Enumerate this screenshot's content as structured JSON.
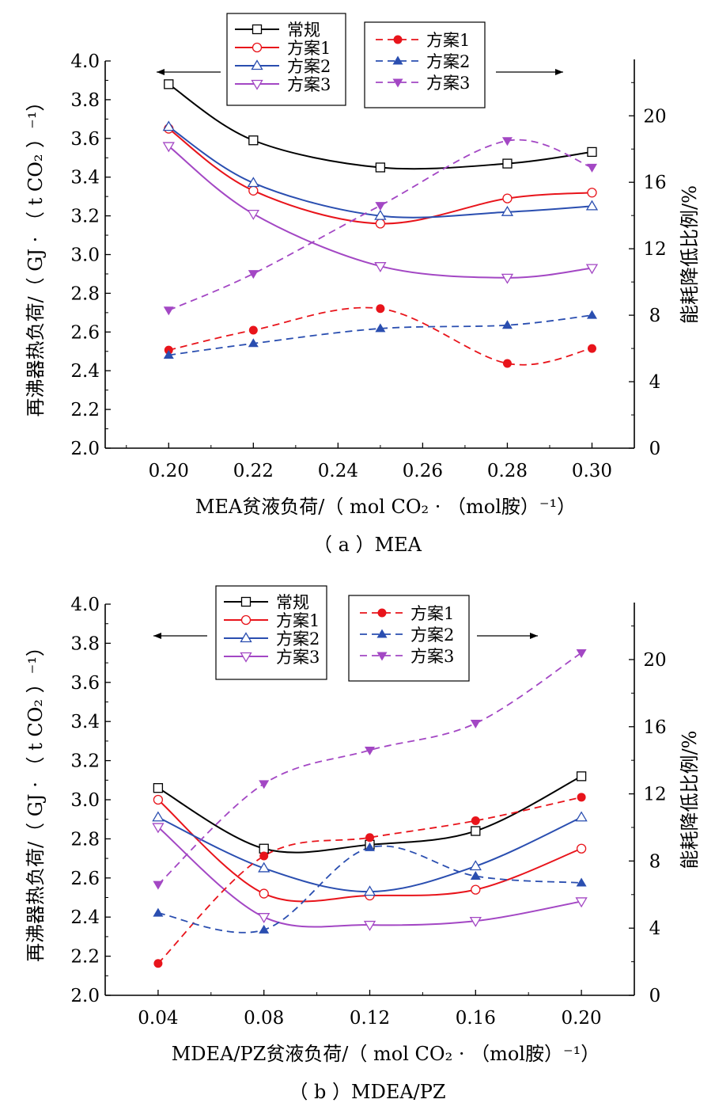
{
  "colors": {
    "conventional": "#000000",
    "scheme1": "#e8141b",
    "scheme2": "#2a4eb0",
    "scheme3": "#a347c4"
  },
  "chart_data": [
    {
      "type": "line",
      "caption": "（ a ）MEA",
      "xlabel": "MEA贫液负荷/（ mol CO₂ · （mol胺）⁻¹）",
      "ylabel": "再沸器热负荷/（ GJ · （ t CO₂ ）⁻¹）",
      "y2label": "能耗降低比例/%",
      "xlim": [
        0.185,
        0.31
      ],
      "ylim": [
        2.0,
        4.0
      ],
      "y2lim": [
        0,
        23.3
      ],
      "x_ticks": [
        "0.20",
        "0.22",
        "0.24",
        "0.26",
        "0.28",
        "0.30"
      ],
      "y_ticks": [
        "2.0",
        "2.2",
        "2.4",
        "2.6",
        "2.8",
        "3.0",
        "3.2",
        "3.4",
        "3.6",
        "3.8",
        "4.0"
      ],
      "y2_ticks": [
        "0",
        "4",
        "8",
        "12",
        "16",
        "20"
      ],
      "legend_left": [
        "常规",
        "方案1",
        "方案2",
        "方案3"
      ],
      "legend_right": [
        "方案1",
        "方案2",
        "方案3"
      ],
      "arrow_left": "←",
      "arrow_right": "→",
      "left_series": [
        {
          "name": "常规",
          "x": [
            0.2,
            0.22,
            0.25,
            0.28,
            0.3
          ],
          "y": [
            3.88,
            3.59,
            3.45,
            3.47,
            3.53
          ]
        },
        {
          "name": "方案1",
          "x": [
            0.2,
            0.22,
            0.25,
            0.28,
            0.3
          ],
          "y": [
            3.65,
            3.33,
            3.16,
            3.29,
            3.32
          ]
        },
        {
          "name": "方案2",
          "x": [
            0.2,
            0.22,
            0.25,
            0.28,
            0.3
          ],
          "y": [
            3.66,
            3.37,
            3.2,
            3.22,
            3.25
          ]
        },
        {
          "name": "方案3",
          "x": [
            0.2,
            0.22,
            0.25,
            0.28,
            0.3
          ],
          "y": [
            3.56,
            3.21,
            2.94,
            2.88,
            2.93
          ]
        }
      ],
      "right_series": [
        {
          "name": "方案1",
          "x": [
            0.2,
            0.22,
            0.25,
            0.28,
            0.3
          ],
          "y": [
            5.9,
            7.1,
            8.4,
            5.1,
            6.0
          ]
        },
        {
          "name": "方案2",
          "x": [
            0.2,
            0.22,
            0.25,
            0.28,
            0.3
          ],
          "y": [
            5.6,
            6.3,
            7.2,
            7.4,
            8.0
          ]
        },
        {
          "name": "方案3",
          "x": [
            0.2,
            0.22,
            0.25,
            0.28,
            0.3
          ],
          "y": [
            8.3,
            10.5,
            14.6,
            18.5,
            16.9
          ]
        }
      ]
    },
    {
      "type": "line",
      "caption": "（ b ）MDEA/PZ",
      "xlabel": "MDEA/PZ贫液负荷/（ mol CO₂ · （mol胺）⁻¹）",
      "ylabel": "再沸器热负荷/（ GJ · （ t CO₂ ）⁻¹）",
      "y2label": "能耗降低比例/%",
      "xlim": [
        0.02,
        0.22
      ],
      "ylim": [
        2.0,
        4.0
      ],
      "y2lim": [
        0,
        23.3
      ],
      "x_ticks": [
        "0.04",
        "0.08",
        "0.12",
        "0.16",
        "0.20"
      ],
      "y_ticks": [
        "2.0",
        "2.2",
        "2.4",
        "2.6",
        "2.8",
        "3.0",
        "3.2",
        "3.4",
        "3.6",
        "3.8",
        "4.0"
      ],
      "y2_ticks": [
        "0",
        "4",
        "8",
        "12",
        "16",
        "20"
      ],
      "legend_left": [
        "常规",
        "方案1",
        "方案2",
        "方案3"
      ],
      "legend_right": [
        "方案1",
        "方案2",
        "方案3"
      ],
      "arrow_left": "←",
      "arrow_right": "→",
      "left_series": [
        {
          "name": "常规",
          "x": [
            0.04,
            0.08,
            0.12,
            0.16,
            0.2
          ],
          "y": [
            3.06,
            2.75,
            2.77,
            2.84,
            3.12
          ]
        },
        {
          "name": "方案1",
          "x": [
            0.04,
            0.08,
            0.12,
            0.16,
            0.2
          ],
          "y": [
            3.0,
            2.52,
            2.51,
            2.54,
            2.75
          ]
        },
        {
          "name": "方案2",
          "x": [
            0.04,
            0.08,
            0.12,
            0.16,
            0.2
          ],
          "y": [
            2.91,
            2.65,
            2.53,
            2.66,
            2.91
          ]
        },
        {
          "name": "方案3",
          "x": [
            0.04,
            0.08,
            0.12,
            0.16,
            0.2
          ],
          "y": [
            2.86,
            2.4,
            2.36,
            2.38,
            2.48
          ]
        }
      ],
      "right_series": [
        {
          "name": "方案1",
          "x": [
            0.04,
            0.08,
            0.12,
            0.16,
            0.2
          ],
          "y": [
            1.9,
            8.3,
            9.4,
            10.4,
            11.8
          ]
        },
        {
          "name": "方案2",
          "x": [
            0.04,
            0.08,
            0.12,
            0.16,
            0.2
          ],
          "y": [
            4.9,
            3.9,
            8.8,
            7.1,
            6.7
          ]
        },
        {
          "name": "方案3",
          "x": [
            0.04,
            0.08,
            0.12,
            0.16,
            0.2
          ],
          "y": [
            6.6,
            12.6,
            14.6,
            16.2,
            20.4
          ]
        }
      ]
    }
  ]
}
